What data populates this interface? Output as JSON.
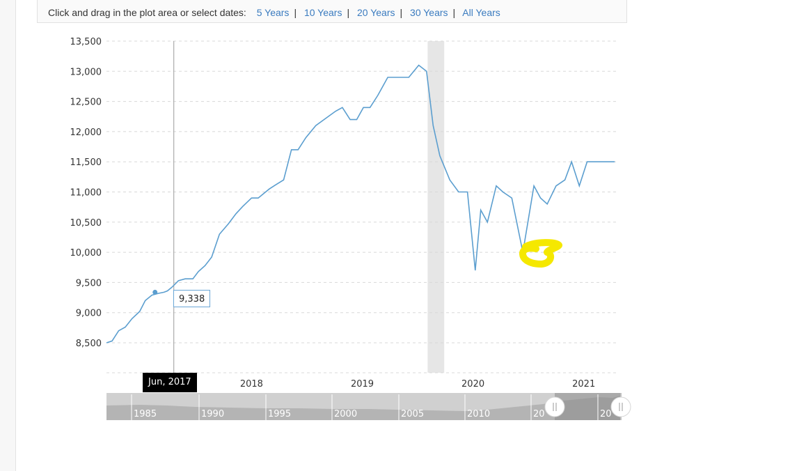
{
  "toolbar": {
    "prompt": "Click and drag in the plot area or select dates:",
    "ranges": [
      "5 Years",
      "10 Years",
      "20 Years",
      "30 Years",
      "All Years"
    ]
  },
  "tooltip": {
    "value": "9,338"
  },
  "crosshair_date": "Jun, 2017",
  "navigator_labels": [
    "1985",
    "1990",
    "1995",
    "2000",
    "2005",
    "2010",
    "20",
    "20"
  ],
  "colors": {
    "line": "#5b9ecf",
    "recession": "#e6e6e6",
    "grid": "#d8d8d8",
    "highlight": "#f5e800"
  },
  "chart_data": {
    "type": "line",
    "title": "",
    "xlabel": "",
    "ylabel": "",
    "ylim": [
      8000,
      13500
    ],
    "yticks": [
      8500,
      9000,
      9500,
      10000,
      10500,
      11000,
      11500,
      12000,
      12500,
      13000,
      13500
    ],
    "ytick_labels": [
      "8,500",
      "9,000",
      "9,500",
      "10,000",
      "10,500",
      "11,000",
      "11,500",
      "12,000",
      "12,500",
      "13,000",
      "13,500"
    ],
    "xlim": [
      2016.69,
      2021.31
    ],
    "xticks": [
      2018,
      2019,
      2020,
      2021
    ],
    "xtick_labels": [
      "2018",
      "2019",
      "2020",
      "2021"
    ],
    "grid": true,
    "recession_band": [
      2019.59,
      2019.74
    ],
    "hover_point": {
      "x": 2017.21,
      "y": 9338
    },
    "series": [
      {
        "x": [
          2016.69,
          2016.74,
          2016.8,
          2016.86,
          2016.92,
          2016.99,
          2017.04,
          2017.1,
          2017.16,
          2017.21,
          2017.24,
          2017.28,
          2017.34,
          2017.4,
          2017.47,
          2017.52,
          2017.58,
          2017.64,
          2017.71,
          2017.79,
          2017.86,
          2017.92,
          2018.0,
          2018.06,
          2018.16,
          2018.22,
          2018.29,
          2018.36,
          2018.42,
          2018.49,
          2018.58,
          2018.7,
          2018.76,
          2018.82,
          2018.89,
          2018.95,
          2019.01,
          2019.07,
          2019.14,
          2019.23,
          2019.33,
          2019.42,
          2019.51,
          2019.58,
          2019.64,
          2019.7,
          2019.79,
          2019.87,
          2019.95,
          2020.02,
          2020.07,
          2020.13,
          2020.21,
          2020.27,
          2020.35,
          2020.45,
          2020.55,
          2020.61,
          2020.67,
          2020.75,
          2020.83,
          2020.89,
          2020.96,
          2021.03,
          2021.11,
          2021.2,
          2021.28
        ],
        "y": [
          8500,
          8530,
          8700,
          8760,
          8900,
          9020,
          9200,
          9290,
          9320,
          9338,
          9360,
          9420,
          9530,
          9560,
          9560,
          9680,
          9780,
          9920,
          10300,
          10470,
          10640,
          10760,
          10900,
          10900,
          11050,
          11120,
          11200,
          11700,
          11700,
          11900,
          12100,
          12260,
          12340,
          12400,
          12200,
          12200,
          12400,
          12400,
          12600,
          12900,
          12900,
          12900,
          13100,
          13000,
          12100,
          11600,
          11200,
          11000,
          11000,
          9700,
          10700,
          10500,
          11100,
          11000,
          10900,
          10000,
          11100,
          10900,
          10800,
          11100,
          11200,
          11500,
          11100,
          11500,
          11500,
          11500,
          11500
        ]
      }
    ]
  }
}
